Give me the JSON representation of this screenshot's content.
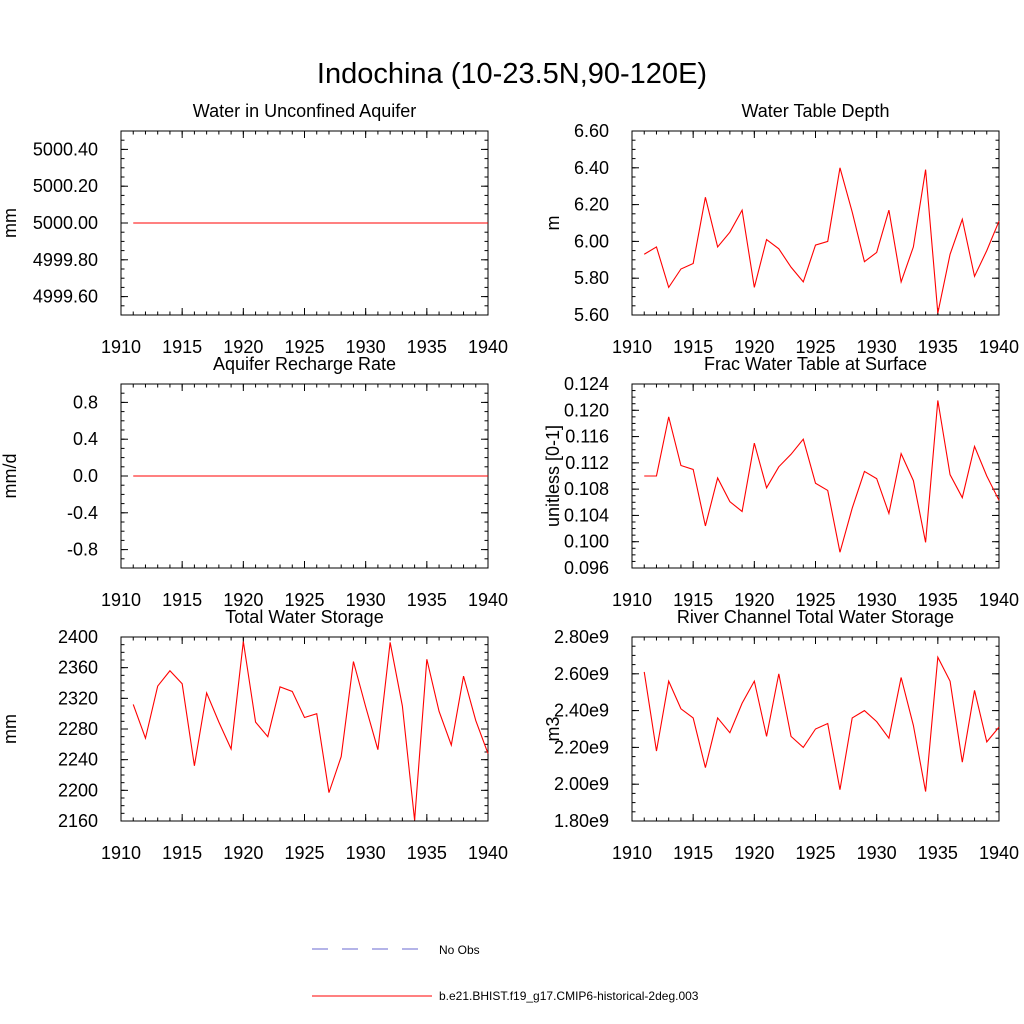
{
  "title": "Indochina (10-23.5N,90-120E)",
  "colors": {
    "model": "#ff0000",
    "obs": "#6a6ad0",
    "axis": "#000000"
  },
  "legend": [
    {
      "label": "No Obs",
      "style": "dashed",
      "color": "#6a6ad0"
    },
    {
      "label": "b.e21.BHIST.f19_g17.CMIP6-historical-2deg.003",
      "style": "solid",
      "color": "#ff0000"
    }
  ],
  "chart_data": [
    {
      "type": "line",
      "title": "Water in Unconfined Aquifer",
      "ylabel": "mm",
      "xlim": [
        1910,
        1940
      ],
      "ylim": [
        4999.5,
        5000.5
      ],
      "yticks": [
        4999.6,
        4999.8,
        5000.0,
        5000.2,
        5000.4
      ],
      "ytick_labels": [
        "4999.60",
        "4999.80",
        "5000.00",
        "5000.20",
        "5000.40"
      ],
      "xticks": [
        1910,
        1915,
        1920,
        1925,
        1930,
        1935,
        1940
      ],
      "x": [
        1911,
        1912,
        1913,
        1914,
        1915,
        1916,
        1917,
        1918,
        1919,
        1920,
        1921,
        1922,
        1923,
        1924,
        1925,
        1926,
        1927,
        1928,
        1929,
        1930,
        1931,
        1932,
        1933,
        1934,
        1935,
        1936,
        1937,
        1938,
        1939,
        1940
      ],
      "series": [
        {
          "values": [
            5000,
            5000,
            5000,
            5000,
            5000,
            5000,
            5000,
            5000,
            5000,
            5000,
            5000,
            5000,
            5000,
            5000,
            5000,
            5000,
            5000,
            5000,
            5000,
            5000,
            5000,
            5000,
            5000,
            5000,
            5000,
            5000,
            5000,
            5000,
            5000,
            5000
          ]
        }
      ]
    },
    {
      "type": "line",
      "title": "Water Table Depth",
      "ylabel": "m",
      "xlim": [
        1910,
        1940
      ],
      "ylim": [
        5.6,
        6.6
      ],
      "yticks": [
        5.6,
        5.8,
        6.0,
        6.2,
        6.4,
        6.6
      ],
      "ytick_labels": [
        "5.60",
        "5.80",
        "6.00",
        "6.20",
        "6.40",
        "6.60"
      ],
      "xticks": [
        1910,
        1915,
        1920,
        1925,
        1930,
        1935,
        1940
      ],
      "x": [
        1911,
        1912,
        1913,
        1914,
        1915,
        1916,
        1917,
        1918,
        1919,
        1920,
        1921,
        1922,
        1923,
        1924,
        1925,
        1926,
        1927,
        1928,
        1929,
        1930,
        1931,
        1932,
        1933,
        1934,
        1935,
        1936,
        1937,
        1938,
        1939,
        1940
      ],
      "series": [
        {
          "values": [
            5.93,
            5.97,
            5.75,
            5.85,
            5.88,
            6.24,
            5.97,
            6.05,
            6.17,
            5.75,
            6.01,
            5.96,
            5.86,
            5.78,
            5.98,
            6.0,
            6.4,
            6.16,
            5.89,
            5.94,
            6.17,
            5.78,
            5.97,
            6.39,
            5.61,
            5.93,
            6.12,
            5.81,
            5.95,
            6.11
          ]
        }
      ]
    },
    {
      "type": "line",
      "title": "Aquifer Recharge Rate",
      "ylabel": "mm/d",
      "xlim": [
        1910,
        1940
      ],
      "ylim": [
        -1.0,
        1.0
      ],
      "yticks": [
        -0.8,
        -0.4,
        0.0,
        0.4,
        0.8
      ],
      "ytick_labels": [
        "-0.8",
        "-0.4",
        "0.0",
        "0.4",
        "0.8"
      ],
      "xticks": [
        1910,
        1915,
        1920,
        1925,
        1930,
        1935,
        1940
      ],
      "x": [
        1911,
        1912,
        1913,
        1914,
        1915,
        1916,
        1917,
        1918,
        1919,
        1920,
        1921,
        1922,
        1923,
        1924,
        1925,
        1926,
        1927,
        1928,
        1929,
        1930,
        1931,
        1932,
        1933,
        1934,
        1935,
        1936,
        1937,
        1938,
        1939,
        1940
      ],
      "series": [
        {
          "values": [
            0,
            0,
            0,
            0,
            0,
            0,
            0,
            0,
            0,
            0,
            0,
            0,
            0,
            0,
            0,
            0,
            0,
            0,
            0,
            0,
            0,
            0,
            0,
            0,
            0,
            0,
            0,
            0,
            0,
            0
          ]
        }
      ]
    },
    {
      "type": "line",
      "title": "Frac Water Table at Surface",
      "ylabel": "unitless [0-1]",
      "xlim": [
        1910,
        1940
      ],
      "ylim": [
        0.096,
        0.124
      ],
      "yticks": [
        0.096,
        0.1,
        0.104,
        0.108,
        0.112,
        0.116,
        0.12,
        0.124
      ],
      "ytick_labels": [
        "0.096",
        "0.100",
        "0.104",
        "0.108",
        "0.112",
        "0.116",
        "0.120",
        "0.124"
      ],
      "xticks": [
        1910,
        1915,
        1920,
        1925,
        1930,
        1935,
        1940
      ],
      "x": [
        1911,
        1912,
        1913,
        1914,
        1915,
        1916,
        1917,
        1918,
        1919,
        1920,
        1921,
        1922,
        1923,
        1924,
        1925,
        1926,
        1927,
        1928,
        1929,
        1930,
        1931,
        1932,
        1933,
        1934,
        1935,
        1936,
        1937,
        1938,
        1939,
        1940
      ],
      "series": [
        {
          "values": [
            0.11,
            0.11,
            0.119,
            0.1116,
            0.111,
            0.1024,
            0.1097,
            0.1061,
            0.1046,
            0.115,
            0.1082,
            0.1114,
            0.1133,
            0.1156,
            0.1089,
            0.1078,
            0.0984,
            0.1051,
            0.1107,
            0.1096,
            0.1043,
            0.1134,
            0.1093,
            0.0999,
            0.1215,
            0.1102,
            0.1067,
            0.1145,
            0.11,
            0.1063
          ]
        }
      ]
    },
    {
      "type": "line",
      "title": "Total Water Storage",
      "ylabel": "mm",
      "xlim": [
        1910,
        1940
      ],
      "ylim": [
        2160,
        2400
      ],
      "yticks": [
        2160,
        2200,
        2240,
        2280,
        2320,
        2360,
        2400
      ],
      "ytick_labels": [
        "2160",
        "2200",
        "2240",
        "2280",
        "2320",
        "2360",
        "2400"
      ],
      "xticks": [
        1910,
        1915,
        1920,
        1925,
        1930,
        1935,
        1940
      ],
      "x": [
        1911,
        1912,
        1913,
        1914,
        1915,
        1916,
        1917,
        1918,
        1919,
        1920,
        1921,
        1922,
        1923,
        1924,
        1925,
        1926,
        1927,
        1928,
        1929,
        1930,
        1931,
        1932,
        1933,
        1934,
        1935,
        1936,
        1937,
        1938,
        1939,
        1940
      ],
      "series": [
        {
          "values": [
            2312,
            2268,
            2336,
            2356,
            2339,
            2232,
            2327,
            2289,
            2254,
            2394,
            2289,
            2270,
            2335,
            2329,
            2295,
            2300,
            2197,
            2244,
            2368,
            2309,
            2253,
            2393,
            2310,
            2161,
            2371,
            2303,
            2259,
            2349,
            2291,
            2248
          ]
        }
      ]
    },
    {
      "type": "line",
      "title": "River Channel Total Water Storage",
      "ylabel": "m3",
      "xlim": [
        1910,
        1940
      ],
      "ylim": [
        1800000000.0,
        2800000000.0
      ],
      "yticks": [
        1800000000.0,
        2000000000.0,
        2200000000.0,
        2400000000.0,
        2600000000.0,
        2800000000.0
      ],
      "ytick_labels": [
        "1.80e9",
        "2.00e9",
        "2.20e9",
        "2.40e9",
        "2.60e9",
        "2.80e9"
      ],
      "xticks": [
        1910,
        1915,
        1920,
        1925,
        1930,
        1935,
        1940
      ],
      "x": [
        1911,
        1912,
        1913,
        1914,
        1915,
        1916,
        1917,
        1918,
        1919,
        1920,
        1921,
        1922,
        1923,
        1924,
        1925,
        1926,
        1927,
        1928,
        1929,
        1930,
        1931,
        1932,
        1933,
        1934,
        1935,
        1936,
        1937,
        1938,
        1939,
        1940
      ],
      "series": [
        {
          "values": [
            2610000000.0,
            2180000000.0,
            2560000000.0,
            2410000000.0,
            2360000000.0,
            2090000000.0,
            2360000000.0,
            2280000000.0,
            2440000000.0,
            2560000000.0,
            2260000000.0,
            2600000000.0,
            2260000000.0,
            2200000000.0,
            2300000000.0,
            2330000000.0,
            1970000000.0,
            2360000000.0,
            2400000000.0,
            2340000000.0,
            2250000000.0,
            2580000000.0,
            2320000000.0,
            1960000000.0,
            2690000000.0,
            2560000000.0,
            2120000000.0,
            2510000000.0,
            2230000000.0,
            2310000000.0
          ]
        }
      ]
    }
  ]
}
